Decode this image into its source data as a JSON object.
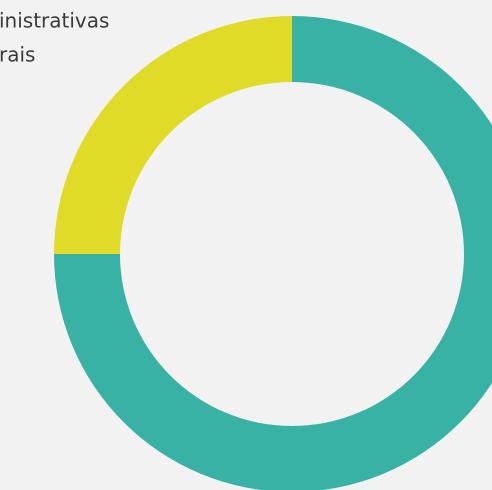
{
  "chart_data": {
    "type": "donut",
    "annotations": [
      "inistrativas",
      "rais"
    ],
    "values": [
      75,
      25
    ],
    "colors": [
      "#38b2a4",
      "#dfdb26"
    ]
  }
}
